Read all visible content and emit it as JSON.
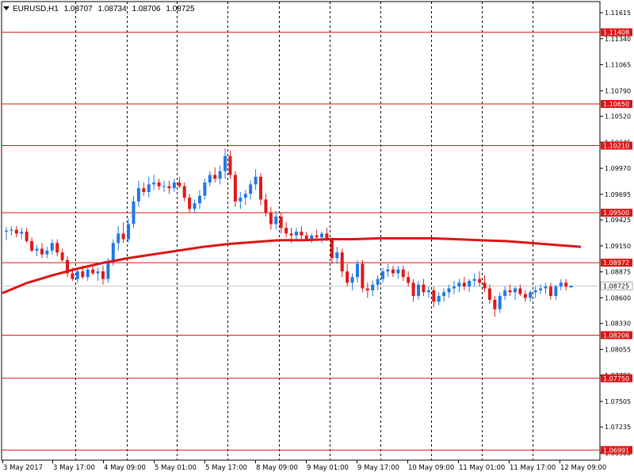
{
  "header": {
    "symbol": "EURUSD,H1",
    "open": "1.08707",
    "high": "1.08734",
    "low": "1.08706",
    "close": "1.08725"
  },
  "chart_data": {
    "type": "candlestick",
    "colors": {
      "bull": "#1f78e8",
      "bear": "#e01818",
      "ma": "#dd1515",
      "level": "#dd1515",
      "grid": "#000000",
      "current": "#c8c8c8"
    },
    "y_ticks": [
      "1.11615",
      "1.11340",
      "1.11065",
      "1.10790",
      "1.10520",
      "1.10245",
      "1.09970",
      "1.09695",
      "1.09425",
      "1.09150",
      "1.08875",
      "1.08600",
      "1.08330",
      "1.08055",
      "1.07780",
      "1.07505",
      "1.07235",
      "1.06960"
    ],
    "levels": [
      "1.11408",
      "1.10650",
      "1.10210",
      "1.09500",
      "1.08972",
      "1.08206",
      "1.07750",
      "1.06991"
    ],
    "current_price": "1.08725",
    "x_labels": [
      "3 May 2017",
      "3 May 17:00",
      "4 May 09:00",
      "5 May 01:00",
      "5 May 17:00",
      "8 May 09:00",
      "9 May 01:00",
      "9 May 17:00",
      "10 May 09:00",
      "11 May 01:00",
      "11 May 17:00",
      "12 May 09:00"
    ],
    "ma_points": [
      [
        1.0865,
        1.0876,
        1.0884,
        1.0891,
        1.0897,
        1.0902,
        1.0906,
        1.091,
        1.0914,
        1.0917,
        1.0919,
        1.0921
      ],
      [
        1.0921,
        1.0922,
        1.0922,
        1.0923,
        1.0923,
        1.0923,
        1.0922,
        1.0921,
        1.092,
        1.0918,
        1.0916,
        1.0914
      ]
    ],
    "candles": [
      [
        1.093,
        1.0935,
        1.0921,
        1.0931
      ],
      [
        1.0931,
        1.0936,
        1.0926,
        1.0932
      ],
      [
        1.0932,
        1.0936,
        1.0924,
        1.0928
      ],
      [
        1.0928,
        1.0934,
        1.0922,
        1.093
      ],
      [
        1.093,
        1.0934,
        1.0918,
        1.092
      ],
      [
        1.092,
        1.0924,
        1.0908,
        1.091
      ],
      [
        1.091,
        1.0916,
        1.0904,
        1.0912
      ],
      [
        1.0912,
        1.0918,
        1.0902,
        1.0906
      ],
      [
        1.0906,
        1.0914,
        1.0902,
        1.091
      ],
      [
        1.091,
        1.0922,
        1.0906,
        1.0918
      ],
      [
        1.0918,
        1.0922,
        1.0904,
        1.0908
      ],
      [
        1.0908,
        1.0912,
        1.0898,
        1.09
      ],
      [
        1.09,
        1.0904,
        1.0882,
        1.0886
      ],
      [
        1.0886,
        1.0892,
        1.0878,
        1.088
      ],
      [
        1.088,
        1.089,
        1.0876,
        1.0888
      ],
      [
        1.0888,
        1.0894,
        1.088,
        1.0882
      ],
      [
        1.0882,
        1.0892,
        1.0878,
        1.089
      ],
      [
        1.089,
        1.0896,
        1.0884,
        1.0886
      ],
      [
        1.0886,
        1.0892,
        1.0878,
        1.0888
      ],
      [
        1.0888,
        1.0894,
        1.0874,
        1.088
      ],
      [
        1.088,
        1.0902,
        1.0876,
        1.0898
      ],
      [
        1.0898,
        1.0922,
        1.0894,
        1.0918
      ],
      [
        1.0918,
        1.0936,
        1.091,
        1.0928
      ],
      [
        1.0928,
        1.094,
        1.0918,
        1.0922
      ],
      [
        1.0922,
        1.0944,
        1.0918,
        1.0938
      ],
      [
        1.0938,
        1.0968,
        1.0934,
        1.0962
      ],
      [
        1.0962,
        1.0984,
        1.0956,
        1.0976
      ],
      [
        1.0976,
        1.0982,
        1.0968,
        1.0972
      ],
      [
        1.0972,
        1.0988,
        1.0966,
        1.098
      ],
      [
        1.098,
        1.099,
        1.0974,
        1.0982
      ],
      [
        1.0982,
        1.0986,
        1.0974,
        1.0978
      ],
      [
        1.0978,
        1.0984,
        1.0972,
        1.0978
      ],
      [
        1.0978,
        1.0984,
        1.097,
        1.0976
      ],
      [
        1.0976,
        1.0986,
        1.0972,
        1.0982
      ],
      [
        1.0982,
        1.0988,
        1.0976,
        1.0978
      ],
      [
        1.0978,
        1.0982,
        1.0962,
        1.0966
      ],
      [
        1.0966,
        1.097,
        1.095,
        1.0954
      ],
      [
        1.0954,
        1.0964,
        1.095,
        1.096
      ],
      [
        1.096,
        1.0974,
        1.0954,
        1.0968
      ],
      [
        1.0968,
        1.0986,
        1.0964,
        1.0982
      ],
      [
        1.0982,
        1.0994,
        1.0978,
        1.099
      ],
      [
        1.099,
        1.0998,
        1.0982,
        1.0986
      ],
      [
        1.0986,
        1.1,
        1.098,
        1.0994
      ],
      [
        1.0994,
        1.1018,
        1.0986,
        1.101
      ],
      [
        1.101,
        1.1016,
        1.0986,
        1.099
      ],
      [
        1.099,
        1.0994,
        1.0956,
        1.0962
      ],
      [
        1.0962,
        1.0972,
        1.0954,
        1.0966
      ],
      [
        1.0966,
        1.0974,
        1.0958,
        1.097
      ],
      [
        1.097,
        1.0984,
        1.0964,
        1.098
      ],
      [
        1.098,
        1.0996,
        1.0974,
        1.0988
      ],
      [
        1.0988,
        1.0992,
        1.0958,
        1.0964
      ],
      [
        1.0964,
        1.097,
        1.0946,
        1.095
      ],
      [
        1.095,
        1.0956,
        1.0932,
        1.0938
      ],
      [
        1.0938,
        1.0952,
        1.0932,
        1.0946
      ],
      [
        1.0946,
        1.095,
        1.0928,
        1.0934
      ],
      [
        1.0934,
        1.094,
        1.0924,
        1.0928
      ],
      [
        1.0928,
        1.0934,
        1.0918,
        1.0926
      ],
      [
        1.0926,
        1.0934,
        1.092,
        1.093
      ],
      [
        1.093,
        1.0936,
        1.0922,
        1.0926
      ],
      [
        1.0926,
        1.093,
        1.092,
        1.0922
      ],
      [
        1.0922,
        1.0928,
        1.0918,
        1.0926
      ],
      [
        1.0926,
        1.0932,
        1.092,
        1.0924
      ],
      [
        1.0924,
        1.093,
        1.0918,
        1.0928
      ],
      [
        1.0928,
        1.0934,
        1.092,
        1.0922
      ],
      [
        1.0922,
        1.0924,
        1.0896,
        1.0902
      ],
      [
        1.0902,
        1.0914,
        1.0896,
        1.0908
      ],
      [
        1.0908,
        1.0912,
        1.0882,
        1.0888
      ],
      [
        1.0888,
        1.0896,
        1.0872,
        1.0876
      ],
      [
        1.0876,
        1.0886,
        1.0868,
        1.0882
      ],
      [
        1.0882,
        1.09,
        1.0876,
        1.0896
      ],
      [
        1.0896,
        1.09,
        1.0866,
        1.087
      ],
      [
        1.087,
        1.0876,
        1.086,
        1.0868
      ],
      [
        1.0868,
        1.0878,
        1.0862,
        1.0874
      ],
      [
        1.0874,
        1.0884,
        1.0868,
        1.088
      ],
      [
        1.088,
        1.0892,
        1.0876,
        1.0888
      ],
      [
        1.0888,
        1.0896,
        1.0882,
        1.089
      ],
      [
        1.089,
        1.0894,
        1.0882,
        1.0886
      ],
      [
        1.0886,
        1.0894,
        1.088,
        1.089
      ],
      [
        1.089,
        1.0894,
        1.0878,
        1.0882
      ],
      [
        1.0882,
        1.0888,
        1.0872,
        1.0876
      ],
      [
        1.0876,
        1.088,
        1.0856,
        1.0862
      ],
      [
        1.0862,
        1.0878,
        1.0858,
        1.0874
      ],
      [
        1.0874,
        1.088,
        1.0862,
        1.0866
      ],
      [
        1.0866,
        1.0872,
        1.086,
        1.0868
      ],
      [
        1.0868,
        1.0872,
        1.085,
        1.0856
      ],
      [
        1.0856,
        1.0866,
        1.0852,
        1.0862
      ],
      [
        1.0862,
        1.087,
        1.0856,
        1.0866
      ],
      [
        1.0866,
        1.0874,
        1.086,
        1.087
      ],
      [
        1.087,
        1.0878,
        1.0864,
        1.0872
      ],
      [
        1.0872,
        1.088,
        1.0866,
        1.0876
      ],
      [
        1.0876,
        1.0882,
        1.0868,
        1.0872
      ],
      [
        1.0872,
        1.088,
        1.0866,
        1.0878
      ],
      [
        1.0878,
        1.0886,
        1.0872,
        1.088
      ],
      [
        1.088,
        1.0888,
        1.0872,
        1.0876
      ],
      [
        1.0876,
        1.0884,
        1.0866,
        1.087
      ],
      [
        1.087,
        1.0874,
        1.0854,
        1.0858
      ],
      [
        1.0858,
        1.0862,
        1.084,
        1.0848
      ],
      [
        1.0848,
        1.0866,
        1.0844,
        1.0862
      ],
      [
        1.0862,
        1.0872,
        1.0858,
        1.0868
      ],
      [
        1.0868,
        1.0874,
        1.0862,
        1.0866
      ],
      [
        1.0866,
        1.0872,
        1.0858,
        1.087
      ],
      [
        1.087,
        1.0874,
        1.0862,
        1.0864
      ],
      [
        1.0864,
        1.0868,
        1.0856,
        1.086
      ],
      [
        1.086,
        1.0868,
        1.0856,
        1.0866
      ],
      [
        1.0866,
        1.0872,
        1.086,
        1.0868
      ],
      [
        1.0868,
        1.0874,
        1.0864,
        1.087
      ],
      [
        1.087,
        1.0876,
        1.0864,
        1.0872
      ],
      [
        1.0872,
        1.0876,
        1.0858,
        1.0862
      ],
      [
        1.0862,
        1.0874,
        1.0858,
        1.0872
      ],
      [
        1.0872,
        1.088,
        1.0868,
        1.0876
      ],
      [
        1.0876,
        1.088,
        1.0868,
        1.0872
      ],
      [
        1.0871,
        1.0873,
        1.0871,
        1.0873
      ]
    ]
  }
}
